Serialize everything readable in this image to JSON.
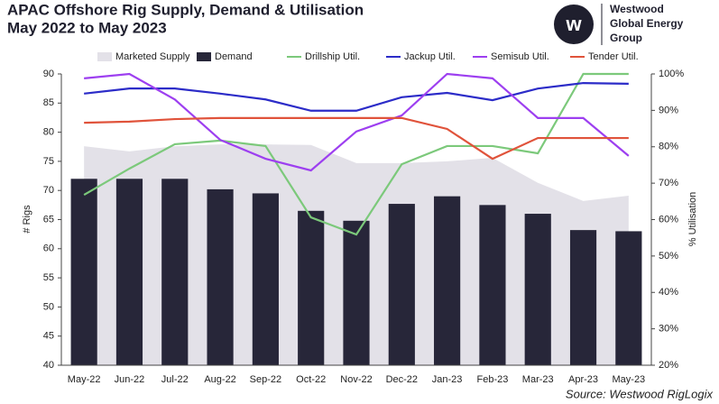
{
  "chart_data": {
    "type": "bar-line",
    "title": "APAC Offshore Rig Supply, Demand & Utilisation",
    "subtitle": "May 2022 to May 2023",
    "logo": [
      "Westwood",
      "Global Energy",
      "Group"
    ],
    "source": "Source: Westwood RigLogix",
    "ylabel": "# Rigs",
    "y2label": "% Utilisation",
    "categories": [
      "May-22",
      "Jun-22",
      "Jul-22",
      "Aug-22",
      "Sep-22",
      "Oct-22",
      "Nov-22",
      "Dec-22",
      "Jan-23",
      "Feb-23",
      "Mar-23",
      "Apr-23",
      "May-23"
    ],
    "ylim": [
      40,
      90
    ],
    "yticks": [
      40,
      45,
      50,
      55,
      60,
      65,
      70,
      75,
      80,
      85,
      90
    ],
    "y2lim": [
      20,
      100
    ],
    "y2ticks": [
      {
        "value": 20,
        "label": "20%"
      },
      {
        "value": 30,
        "label": "30%"
      },
      {
        "value": 40,
        "label": "40%"
      },
      {
        "value": 50,
        "label": "50%"
      },
      {
        "value": 60,
        "label": "60%"
      },
      {
        "value": 70,
        "label": "70%"
      },
      {
        "value": 80,
        "label": "80%"
      },
      {
        "value": 90,
        "label": "90%"
      },
      {
        "value": 100,
        "label": "100%"
      }
    ],
    "series": [
      {
        "name": "Marketed Supply",
        "kind": "area",
        "color": "#e3e1e8",
        "values": [
          77.6,
          76.7,
          77.6,
          77.9,
          77.9,
          77.8,
          74.7,
          74.7,
          75.0,
          75.6,
          71.3,
          68.2,
          69.1
        ]
      },
      {
        "name": "Demand",
        "kind": "bar",
        "color": "#272639",
        "values": [
          72,
          72,
          72,
          70.2,
          69.5,
          66.5,
          64.8,
          67.7,
          69,
          67.5,
          66,
          63.2,
          63
        ]
      },
      {
        "name": "Drillship Util.",
        "kind": "line",
        "axis": "y2",
        "color": "#7cc97b",
        "values": [
          66.8,
          74,
          80.7,
          81.7,
          80.2,
          60.6,
          55.9,
          75.2,
          80.2,
          80.2,
          78.2,
          100,
          100
        ]
      },
      {
        "name": "Jackup Util.",
        "kind": "line",
        "axis": "y2",
        "color": "#2c2cc8",
        "values": [
          94.6,
          96,
          96,
          94.6,
          93,
          89.9,
          89.9,
          93.6,
          94.8,
          92.8,
          96,
          97.5,
          97.3
        ]
      },
      {
        "name": "Semisub Util.",
        "kind": "line",
        "axis": "y2",
        "color": "#9d3ff0",
        "values": [
          98.8,
          100,
          93,
          81.9,
          76.7,
          73.5,
          84.2,
          88.6,
          100,
          98.8,
          87.9,
          87.9,
          77.5
        ]
      },
      {
        "name": "Tender Util.",
        "kind": "line",
        "axis": "y2",
        "color": "#e0533b",
        "values": [
          86.6,
          86.9,
          87.6,
          87.9,
          87.9,
          87.9,
          87.9,
          87.9,
          84.9,
          76.7,
          82.4,
          82.4,
          82.4
        ]
      }
    ]
  }
}
